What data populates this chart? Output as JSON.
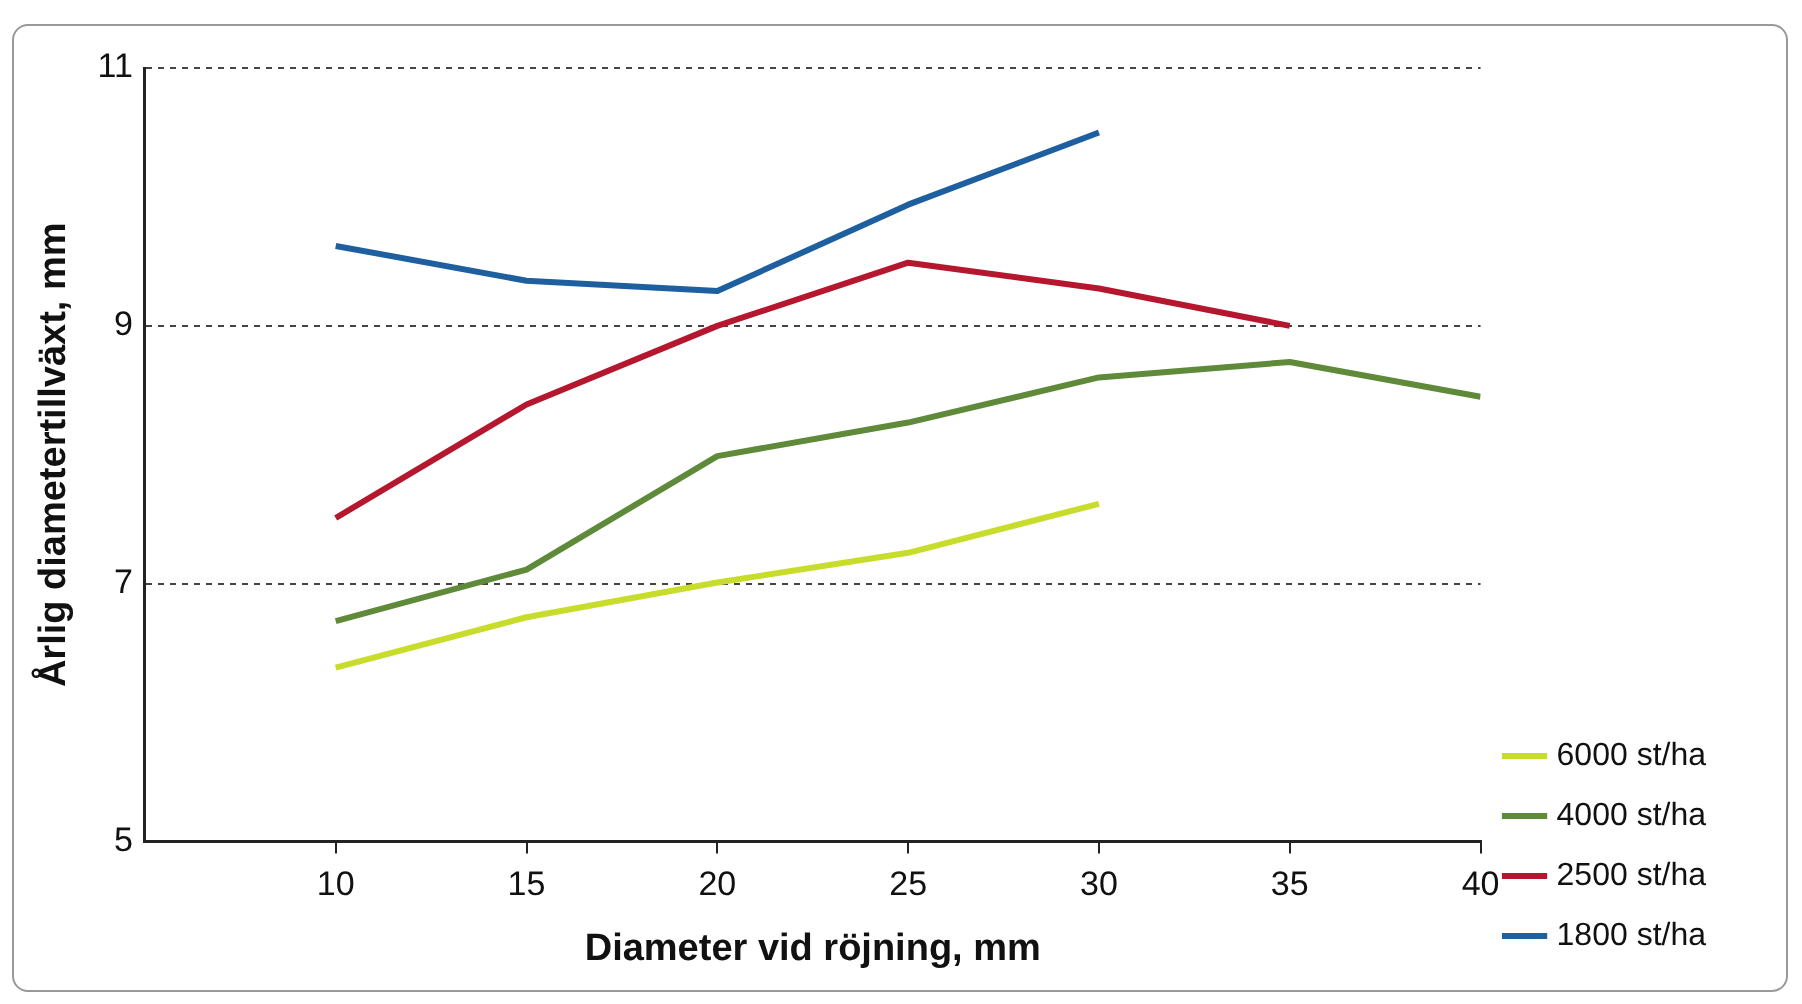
{
  "chart_data": {
    "type": "line",
    "xlabel": "Diameter vid röjning, mm",
    "ylabel": "Årlig diametertillväxt, mm",
    "xlim": [
      5,
      40
    ],
    "xticks": [
      10,
      15,
      20,
      25,
      30,
      35,
      40
    ],
    "ylim": [
      5,
      11
    ],
    "yticks": [
      5,
      7,
      9,
      11
    ],
    "grid": "y",
    "legend": "right",
    "marker": "none",
    "series": [
      {
        "name": "6000 st/ha",
        "color": "#c8dc2c",
        "x": [
          10,
          15,
          20,
          25,
          30
        ],
        "values": [
          6.35,
          6.74,
          7.01,
          7.24,
          7.62
        ]
      },
      {
        "name": "4000 st/ha",
        "color": "#5e8a3a",
        "x": [
          10,
          15,
          20,
          25,
          30,
          35,
          40
        ],
        "values": [
          6.71,
          7.11,
          7.99,
          8.25,
          8.6,
          8.72,
          8.45
        ]
      },
      {
        "name": "2500 st/ha",
        "color": "#b5182e",
        "x": [
          10,
          15,
          20,
          25,
          30,
          35
        ],
        "values": [
          7.51,
          8.39,
          9.0,
          9.49,
          9.29,
          9.0
        ]
      },
      {
        "name": "1800 st/ha",
        "color": "#1e5fa0",
        "x": [
          10,
          15,
          20,
          25,
          30
        ],
        "values": [
          9.62,
          9.35,
          9.27,
          9.94,
          10.5
        ]
      }
    ]
  }
}
